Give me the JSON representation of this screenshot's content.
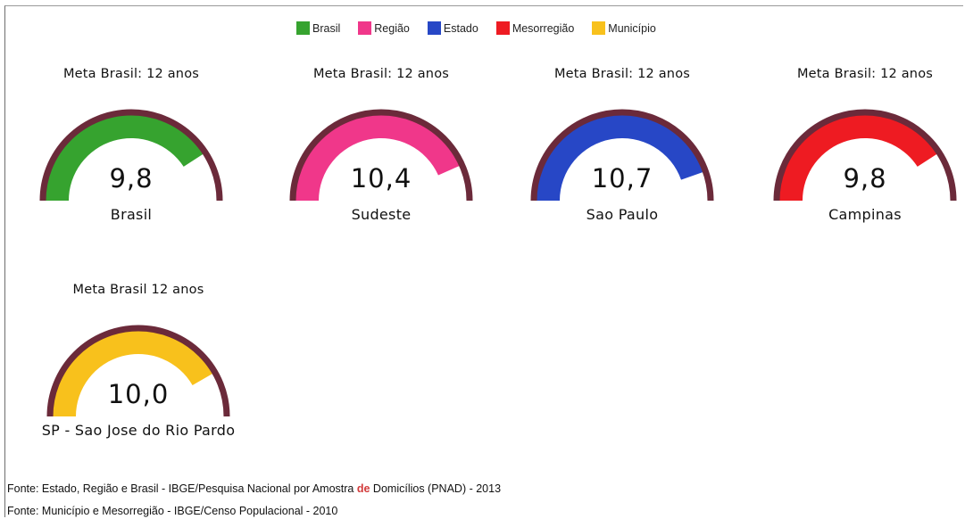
{
  "legend": [
    {
      "label": "Brasil",
      "color": "#36a32f"
    },
    {
      "label": "Região",
      "color": "#f0378a"
    },
    {
      "label": "Estado",
      "color": "#2747c6"
    },
    {
      "label": "Mesorregião",
      "color": "#ee1b22"
    },
    {
      "label": "Município",
      "color": "#f8c11c"
    }
  ],
  "chart_data": [
    {
      "type": "gauge",
      "title": "Meta Brasil: 12 anos",
      "value": 9.8,
      "value_label": "9,8",
      "max": 12,
      "label": "Brasil",
      "color": "#36a32f"
    },
    {
      "type": "gauge",
      "title": "Meta Brasil: 12 anos",
      "value": 10.4,
      "value_label": "10,4",
      "max": 12,
      "label": "Sudeste",
      "color": "#f0378a"
    },
    {
      "type": "gauge",
      "title": "Meta Brasil: 12 anos",
      "value": 10.7,
      "value_label": "10,7",
      "max": 12,
      "label": "Sao Paulo",
      "color": "#2747c6"
    },
    {
      "type": "gauge",
      "title": "Meta Brasil: 12 anos",
      "value": 9.8,
      "value_label": "9,8",
      "max": 12,
      "label": "Campinas",
      "color": "#ee1b22"
    },
    {
      "type": "gauge",
      "title": "Meta Brasil  12 anos",
      "value": 10.0,
      "value_label": "10,0",
      "max": 12,
      "label": "SP - Sao Jose do Rio Pardo",
      "color": "#f8c11c"
    }
  ],
  "track_color": "#6b2a3a",
  "sources": {
    "line1_before": "Fonte: Estado, Região e Brasil - IBGE/Pesquisa Nacional por Amostra ",
    "line1_de": "de",
    "line1_after": " Domicílios (PNAD) - 2013",
    "line2": "Fonte: Município e Mesorregião - IBGE/Censo Populacional - 2010"
  }
}
